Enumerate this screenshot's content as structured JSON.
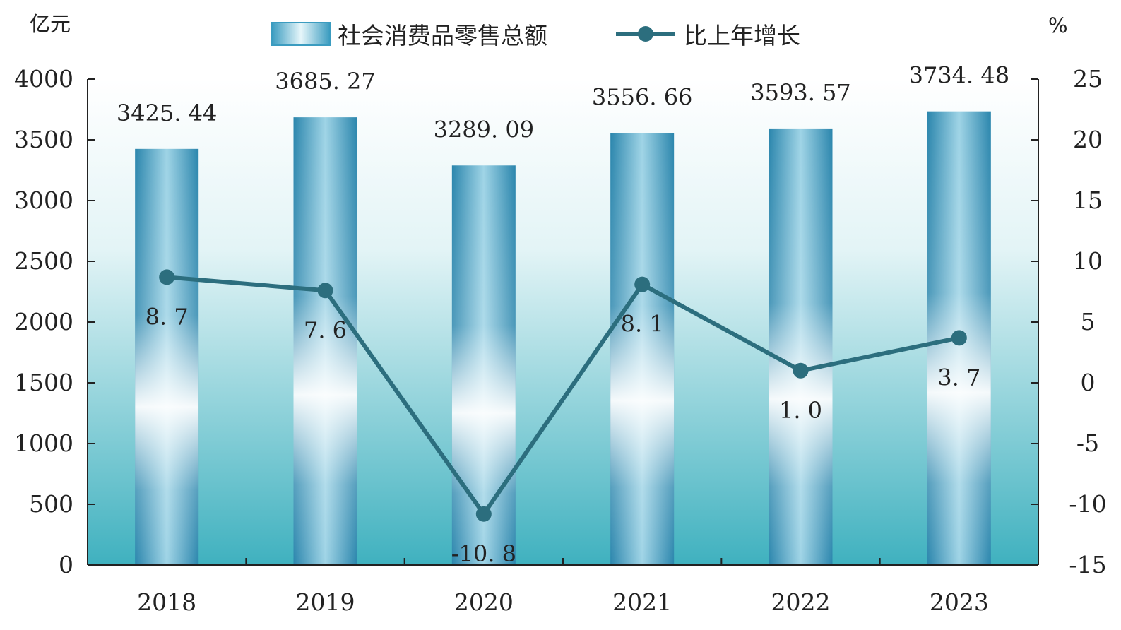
{
  "chart_data": {
    "type": "bar+line",
    "categories": [
      "2018",
      "2019",
      "2020",
      "2021",
      "2022",
      "2023"
    ],
    "series": [
      {
        "name": "社会消费品零售总额",
        "type": "bar",
        "axis": "left",
        "values": [
          3425.44,
          3685.27,
          3289.09,
          3556.66,
          3593.57,
          3734.48
        ],
        "labels": [
          "3425. 44",
          "3685. 27",
          "3289. 09",
          "3556. 66",
          "3593. 57",
          "3734. 48"
        ]
      },
      {
        "name": "比上年增长",
        "type": "line",
        "axis": "right",
        "values": [
          8.7,
          7.6,
          -10.8,
          8.1,
          1.0,
          3.7
        ],
        "labels": [
          "8. 7",
          "7. 6",
          "-10. 8",
          "8. 1",
          "1. 0",
          "3. 7"
        ]
      }
    ],
    "y_left": {
      "unit": "亿元",
      "range": [
        0,
        4000
      ],
      "ticks": [
        0,
        500,
        1000,
        1500,
        2000,
        2500,
        3000,
        3500,
        4000
      ]
    },
    "y_right": {
      "unit": "%",
      "range": [
        -15,
        25
      ],
      "ticks": [
        -15,
        -10,
        -5,
        0,
        5,
        10,
        15,
        20,
        25
      ]
    },
    "legend_position": "top-center",
    "grid": false,
    "colors": {
      "bar": "#2f8fb5",
      "line": "#2c6e7e",
      "background_top": "#ffffff",
      "background_bottom": "#3fb0c0",
      "axis": "#222222"
    }
  }
}
